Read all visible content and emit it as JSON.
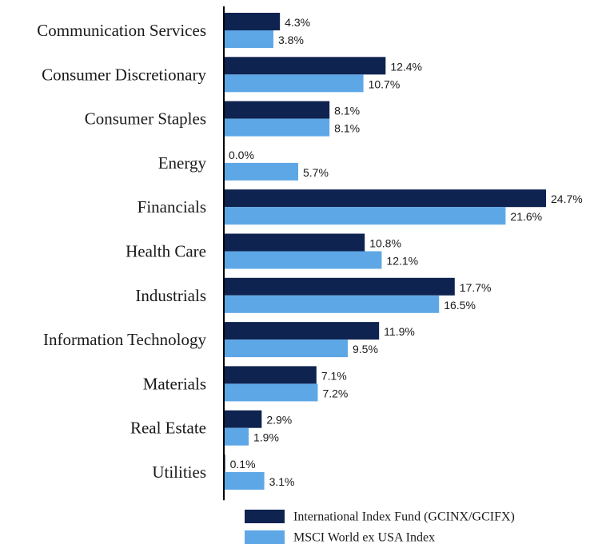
{
  "chart_data": {
    "type": "bar",
    "orientation": "horizontal",
    "categories": [
      "Communication Services",
      "Consumer Discretionary",
      "Consumer Staples",
      "Energy",
      "Financials",
      "Health Care",
      "Industrials",
      "Information Technology",
      "Materials",
      "Real Estate",
      "Utilities"
    ],
    "series": [
      {
        "name": "International Index Fund (GCINX/GCIFX)",
        "color": "#0f2350",
        "values": [
          4.3,
          12.4,
          8.1,
          0.0,
          24.7,
          10.8,
          17.7,
          11.9,
          7.1,
          2.9,
          0.1
        ],
        "labels": [
          "4.3%",
          "12.4%",
          "8.1%",
          "0.0%",
          "24.7%",
          "10.8%",
          "17.7%",
          "11.9%",
          "7.1%",
          "2.9%",
          "0.1%"
        ]
      },
      {
        "name": "MSCI World ex USA Index",
        "color": "#5ea7e6",
        "values": [
          3.8,
          10.7,
          8.1,
          5.7,
          21.6,
          12.1,
          16.5,
          9.5,
          7.2,
          1.9,
          3.1
        ],
        "labels": [
          "3.8%",
          "10.7%",
          "8.1%",
          "5.7%",
          "21.6%",
          "12.1%",
          "16.5%",
          "9.5%",
          "7.2%",
          "1.9%",
          "3.1%"
        ]
      }
    ],
    "xlim": [
      0,
      24.7
    ],
    "legend_position": "bottom",
    "grid": false
  }
}
